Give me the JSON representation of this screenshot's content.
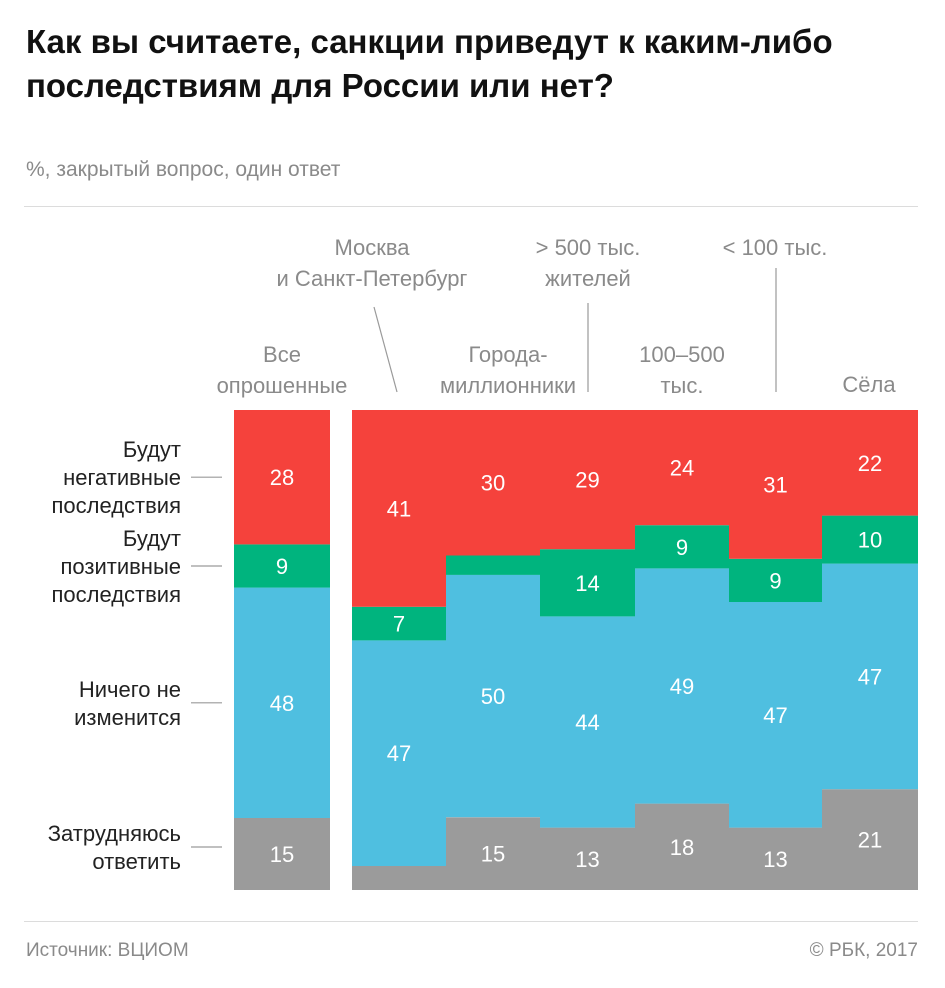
{
  "title": "Как вы считаете, санкции приведут к каким-либо последствиям для России или нет?",
  "subtitle": "%, закрытый вопрос, один ответ",
  "source": "Источник: ВЦИОМ",
  "copyright": "© РБК, 2017",
  "chart_data": {
    "type": "bar",
    "stacked": true,
    "normalized_percent": true,
    "categories": [
      [
        "Все",
        "опрошенные"
      ],
      [
        "Москва",
        "и Санкт-Петербург"
      ],
      [
        "Города-",
        "миллионники"
      ],
      [
        "> 500 тыс.",
        "жителей"
      ],
      [
        "100–500",
        "тыс."
      ],
      [
        "< 100 тыс."
      ],
      [
        "Сёла"
      ]
    ],
    "series": [
      {
        "name": [
          "Затрудняюсь",
          "ответить"
        ],
        "color": "#9b9b9b",
        "values": [
          15,
          5,
          15,
          13,
          18,
          13,
          21
        ],
        "labels": [
          "15",
          "",
          "15",
          "13",
          "18",
          "13",
          "21"
        ]
      },
      {
        "name": [
          "Ничего не",
          "изменится"
        ],
        "color": "#4fbfe0",
        "values": [
          48,
          47,
          50,
          44,
          49,
          47,
          47
        ],
        "labels": [
          "48",
          "47",
          "50",
          "44",
          "49",
          "47",
          "47"
        ]
      },
      {
        "name": [
          "Будут",
          "позитивные",
          "последствия"
        ],
        "color": "#00b47e",
        "values": [
          9,
          7,
          4,
          14,
          9,
          9,
          10
        ],
        "labels": [
          "9",
          "7",
          "",
          "14",
          "9",
          "9",
          "10"
        ]
      },
      {
        "name": [
          "Будут",
          "негативные",
          "последствия"
        ],
        "color": "#f5423c",
        "values": [
          28,
          41,
          30,
          29,
          24,
          31,
          22
        ],
        "labels": [
          "28",
          "41",
          "30",
          "29",
          "24",
          "31",
          "22"
        ]
      }
    ]
  }
}
